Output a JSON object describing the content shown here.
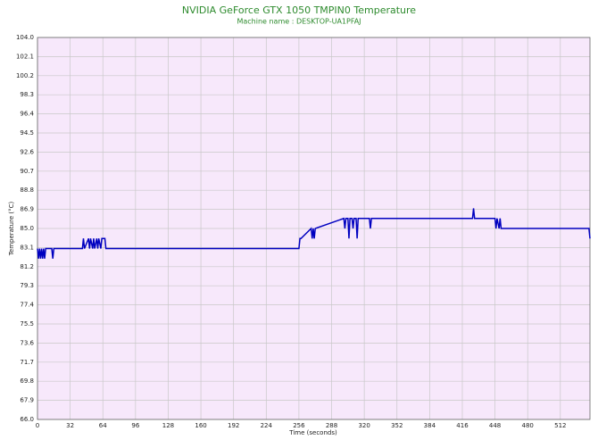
{
  "chart_data": {
    "type": "line",
    "title": "NVIDIA GeForce GTX 1050 TMPIN0 Temperature",
    "subtitle": "Machine name : DESKTOP-UA1PFAJ",
    "x_label": "Time (seconds)",
    "y_label": "Temperature (°C)",
    "xlim": [
      0,
      541
    ],
    "xticks": [
      0,
      32,
      64,
      96,
      128,
      160,
      192,
      224,
      256,
      288,
      320,
      352,
      384,
      416,
      448,
      480,
      512
    ],
    "ylim": [
      66,
      104
    ],
    "yticks": [
      {
        "value": 66,
        "label": "66.0"
      },
      67.9,
      69.8,
      71.7,
      73.6,
      75.5,
      77.4,
      79.3,
      81.2,
      83.1,
      {
        "value": 85,
        "label": "85.0"
      },
      86.9,
      88.8,
      90.7,
      92.6,
      94.5,
      96.4,
      98.3,
      100.2,
      102.1,
      {
        "value": 104,
        "label": "104.0"
      }
    ],
    "grid": true,
    "plot_background": "#f7e8fb",
    "x": [
      0,
      1,
      2,
      3,
      4,
      5,
      6,
      7,
      8,
      14,
      15,
      16,
      44,
      45,
      46,
      50,
      51,
      52,
      54,
      55,
      56,
      58,
      59,
      60,
      62,
      63,
      64,
      66,
      67,
      256,
      257,
      258,
      268,
      269,
      270,
      271,
      272,
      300,
      301,
      302,
      304,
      305,
      306,
      308,
      309,
      310,
      312,
      313,
      314,
      325,
      326,
      327,
      426,
      427,
      428,
      448,
      449,
      450,
      452,
      453,
      454,
      540,
      541
    ],
    "series": [
      {
        "color": "#0000c0",
        "values": [
          83,
          82,
          83,
          82,
          83,
          82,
          83,
          82,
          83,
          83,
          82,
          83,
          83,
          84,
          83,
          84,
          83,
          84,
          83,
          84,
          83,
          84,
          83,
          84,
          83,
          84,
          84,
          84,
          83,
          83,
          84,
          84,
          85,
          84,
          85,
          84,
          85,
          86,
          85,
          86,
          86,
          84,
          86,
          86,
          85,
          86,
          86,
          84,
          86,
          86,
          85,
          86,
          86,
          87,
          86,
          86,
          85,
          86,
          85,
          86,
          85,
          85,
          84
        ]
      }
    ]
  }
}
